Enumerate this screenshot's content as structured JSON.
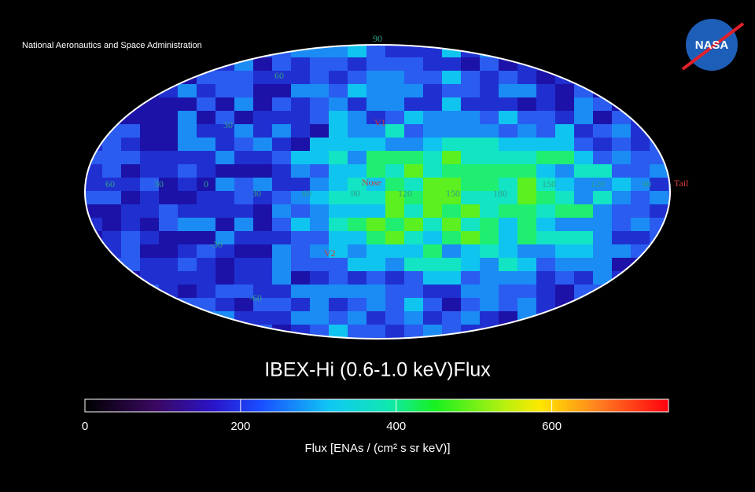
{
  "header": {
    "agency": "National Aeronautics and Space Administration",
    "logo": "NASA"
  },
  "map": {
    "latitude_labels": [
      "90",
      "60",
      "30",
      "-30",
      "-60"
    ],
    "longitude_labels": [
      "60",
      "30",
      "0",
      "30",
      "60",
      "90",
      "120",
      "150",
      "180",
      "150",
      "120",
      "90"
    ],
    "markers": {
      "nose": "Nose",
      "tail": "Tail",
      "v1": "V1",
      "v2": "V2"
    }
  },
  "title": "IBEX-Hi (0.6-1.0 keV)Flux",
  "colorbar": {
    "label": "Flux [ENAs / (cm² s sr keV)]",
    "clim": [
      0,
      750
    ],
    "ticks": [
      0,
      200,
      400,
      600
    ]
  }
}
